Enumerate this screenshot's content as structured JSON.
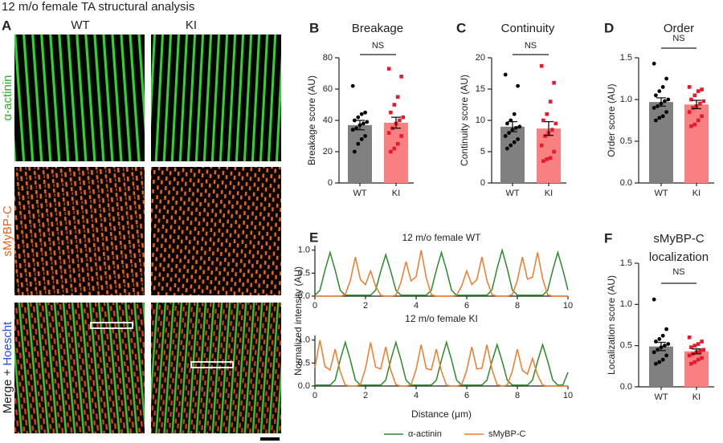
{
  "title": "12 m/o female TA structural analysis",
  "panel_a": {
    "letter": "A",
    "columns": [
      "WT",
      "KI"
    ],
    "rows": [
      "α-actinin",
      "sMyBP-C"
    ],
    "merge_row": [
      "Merge +",
      "Hoescht"
    ]
  },
  "chart_data": [
    {
      "type": "bar",
      "panel": "B",
      "title": "Breakage",
      "ylabel": "Breakage score (AU)",
      "categories": [
        "WT",
        "KI"
      ],
      "values": [
        37,
        38.5
      ],
      "errors": [
        3,
        3.5
      ],
      "colors": [
        "#808080",
        "#f88080"
      ],
      "points": [
        [
          62,
          45,
          44,
          42,
          40,
          39,
          38,
          37,
          35,
          34,
          30,
          28,
          25,
          20
        ],
        [
          73,
          68,
          55,
          50,
          45,
          42,
          40,
          38,
          35,
          32,
          30,
          25,
          22,
          20
        ]
      ],
      "point_colors": [
        "#000000",
        "#e8192c"
      ],
      "point_markers": [
        "circle",
        "square"
      ],
      "annotation": "NS",
      "ylim": [
        0,
        80
      ],
      "yticks": [
        0,
        20,
        40,
        60,
        80
      ]
    },
    {
      "type": "bar",
      "panel": "C",
      "title": "Continuity",
      "ylabel": "Continuity score (AU)",
      "categories": [
        "WT",
        "KI"
      ],
      "values": [
        9,
        8.7
      ],
      "errors": [
        0.8,
        1.1
      ],
      "colors": [
        "#808080",
        "#f88080"
      ],
      "points": [
        [
          17.3,
          15.5,
          11,
          10,
          9.5,
          9,
          8.8,
          8.5,
          8,
          7.5,
          7,
          6.5,
          6,
          5.5
        ],
        [
          18.7,
          16,
          13,
          11,
          10,
          9.5,
          8.5,
          8,
          7.5,
          6,
          5,
          4,
          3.8,
          3.5
        ]
      ],
      "point_colors": [
        "#000000",
        "#e8192c"
      ],
      "point_markers": [
        "circle",
        "square"
      ],
      "annotation": "NS",
      "ylim": [
        0,
        20
      ],
      "yticks": [
        0,
        5,
        10,
        15,
        20
      ]
    },
    {
      "type": "bar",
      "panel": "D",
      "title": "Order",
      "ylabel": "Order score (AU)",
      "categories": [
        "WT",
        "KI"
      ],
      "values": [
        0.97,
        0.94
      ],
      "errors": [
        0.05,
        0.05
      ],
      "colors": [
        "#808080",
        "#f88080"
      ],
      "points": [
        [
          1.43,
          1.25,
          1.15,
          1.1,
          1.05,
          1.0,
          0.98,
          0.95,
          0.92,
          0.9,
          0.85,
          0.8,
          0.78,
          0.75
        ],
        [
          1.15,
          1.12,
          1.1,
          1.05,
          1.0,
          0.98,
          0.95,
          0.92,
          0.9,
          0.85,
          0.8,
          0.75,
          0.7,
          0.68
        ]
      ],
      "point_colors": [
        "#000000",
        "#e8192c"
      ],
      "point_markers": [
        "circle",
        "square"
      ],
      "annotation": "NS",
      "ylim": [
        0,
        1.5
      ],
      "yticks": [
        {
          "value": 0,
          "label": "0.0"
        },
        0.5,
        {
          "value": 1,
          "label": "1.0"
        },
        1.5
      ]
    },
    {
      "type": "bar",
      "panel": "F",
      "title": [
        "sMyBP-C",
        "localization"
      ],
      "ylabel": "Localization score (AU)",
      "categories": [
        "WT",
        "KI"
      ],
      "values": [
        0.49,
        0.43
      ],
      "errors": [
        0.05,
        0.03
      ],
      "colors": [
        "#808080",
        "#f88080"
      ],
      "points": [
        [
          1.06,
          0.7,
          0.62,
          0.58,
          0.55,
          0.52,
          0.5,
          0.48,
          0.45,
          0.42,
          0.38,
          0.33,
          0.3,
          0.28
        ],
        [
          0.6,
          0.55,
          0.52,
          0.5,
          0.48,
          0.45,
          0.43,
          0.42,
          0.4,
          0.38,
          0.35,
          0.33,
          0.3,
          0.28
        ]
      ],
      "point_colors": [
        "#000000",
        "#e8192c"
      ],
      "point_markers": [
        "circle",
        "square"
      ],
      "annotation": "NS",
      "ylim": [
        0,
        1.5
      ],
      "yticks": [
        {
          "value": 0,
          "label": "0.0"
        },
        0.5,
        {
          "value": 1,
          "label": "1.0"
        },
        1.5
      ]
    },
    {
      "type": "line",
      "panel": "E",
      "title": "12 m/o female WT",
      "ylabel": "Normalized intensity (AU)",
      "x": [
        0,
        0.2,
        0.4,
        0.6,
        0.8,
        1,
        1.2,
        1.4,
        1.6,
        1.8,
        2,
        2.2,
        2.4,
        2.6,
        2.8,
        3,
        3.2,
        3.4,
        3.6,
        3.8,
        4,
        4.2,
        4.4,
        4.6,
        4.8,
        5,
        5.2,
        5.4,
        5.6,
        5.8,
        6,
        6.2,
        6.4,
        6.6,
        6.8,
        7,
        7.2,
        7.4,
        7.6,
        7.8,
        8,
        8.2,
        8.4,
        8.6,
        8.8,
        9,
        9.2,
        9.4,
        9.6,
        9.8,
        10
      ],
      "series": [
        {
          "color": "#2a8a2a",
          "values": [
            0.02,
            0.13,
            0.57,
            0.95,
            0.57,
            0.13,
            0.02,
            0.02,
            0.02,
            0.02,
            0.02,
            0.02,
            0.13,
            0.54,
            0.9,
            0.54,
            0.13,
            0.02,
            0.02,
            0.02,
            0.02,
            0.02,
            0.02,
            0.13,
            0.57,
            0.95,
            0.57,
            0.13,
            0.02,
            0.02,
            0.02,
            0.02,
            0.02,
            0.02,
            0.02,
            0.14,
            0.6,
            1.0,
            0.6,
            0.14,
            0.02,
            0.02,
            0.02,
            0.02,
            0.02,
            0.02,
            0.13,
            0.57,
            0.95,
            0.57,
            0.13
          ]
        },
        {
          "color": "#f07a28",
          "values": [
            0,
            0,
            0,
            0,
            0,
            0,
            0.03,
            0.34,
            0.85,
            0.36,
            0.25,
            0.55,
            0.22,
            0.02,
            0,
            0,
            0.02,
            0.3,
            0.75,
            0.33,
            0.42,
            1.0,
            0.4,
            0.03,
            0,
            0,
            0,
            0,
            0.02,
            0.22,
            0.55,
            0.25,
            0.36,
            0.85,
            0.34,
            0.03,
            0,
            0,
            0,
            0.03,
            0.34,
            0.85,
            0.37,
            0.41,
            0.95,
            0.38,
            0.03,
            0,
            0,
            0,
            0
          ]
        }
      ],
      "xlim": [
        0,
        10
      ],
      "xticks": [
        0,
        2,
        4,
        6,
        8,
        10
      ],
      "ylim": [
        0,
        1.1
      ],
      "yticks": [
        {
          "value": 0,
          "label": "0.0"
        },
        0.5,
        {
          "value": 1,
          "label": "1.0"
        }
      ]
    },
    {
      "type": "line",
      "title": "12 m/o female KI",
      "xlabel": "Distance (μm)",
      "legend": "bottom",
      "x": [
        0,
        0.2,
        0.4,
        0.6,
        0.8,
        1,
        1.2,
        1.4,
        1.6,
        1.8,
        2,
        2.2,
        2.4,
        2.6,
        2.8,
        3,
        3.2,
        3.4,
        3.6,
        3.8,
        4,
        4.2,
        4.4,
        4.6,
        4.8,
        5,
        5.2,
        5.4,
        5.6,
        5.8,
        6,
        6.2,
        6.4,
        6.6,
        6.8,
        7,
        7.2,
        7.4,
        7.6,
        7.8,
        8,
        8.2,
        8.4,
        8.6,
        8.8,
        9,
        9.2,
        9.4,
        9.6,
        9.8,
        10
      ],
      "series": [
        {
          "name": "α-actinin",
          "color": "#2a8a2a",
          "values": [
            0.02,
            0.02,
            0.02,
            0.02,
            0.13,
            0.57,
            0.95,
            0.57,
            0.13,
            0.02,
            0.02,
            0.02,
            0.02,
            0.02,
            0.13,
            0.57,
            0.95,
            0.57,
            0.13,
            0.02,
            0.02,
            0.02,
            0.02,
            0.02,
            0.13,
            0.57,
            0.95,
            0.57,
            0.13,
            0.02,
            0.02,
            0.02,
            0.02,
            0.02,
            0.13,
            0.54,
            0.9,
            0.54,
            0.13,
            0.02,
            0.02,
            0.02,
            0.02,
            0.13,
            0.54,
            0.9,
            0.54,
            0.13,
            0.02,
            0.02,
            0.3
          ]
        },
        {
          "name": "sMyBP-C",
          "color": "#f07a28",
          "values": [
            0.4,
            1.0,
            0.42,
            0.35,
            0.8,
            0.32,
            0.02,
            0,
            0,
            0.03,
            0.38,
            0.95,
            0.41,
            0.37,
            0.85,
            0.34,
            0.03,
            0,
            0,
            0.03,
            0.36,
            0.9,
            0.38,
            0.35,
            0.8,
            0.32,
            0.02,
            0,
            0,
            0.03,
            0.34,
            0.85,
            0.37,
            0.39,
            0.9,
            0.36,
            0.03,
            0,
            0.02,
            0.32,
            0.8,
            0.34,
            0.26,
            0.6,
            0.24,
            0.02,
            0,
            0,
            0,
            0,
            0
          ]
        }
      ],
      "xlim": [
        0,
        10
      ],
      "xticks": [
        0,
        2,
        4,
        6,
        8,
        10
      ],
      "ylim": [
        0,
        1.1
      ],
      "yticks": [
        {
          "value": 0,
          "label": "0.0"
        },
        0.5,
        {
          "value": 1,
          "label": "1.0"
        }
      ]
    }
  ]
}
